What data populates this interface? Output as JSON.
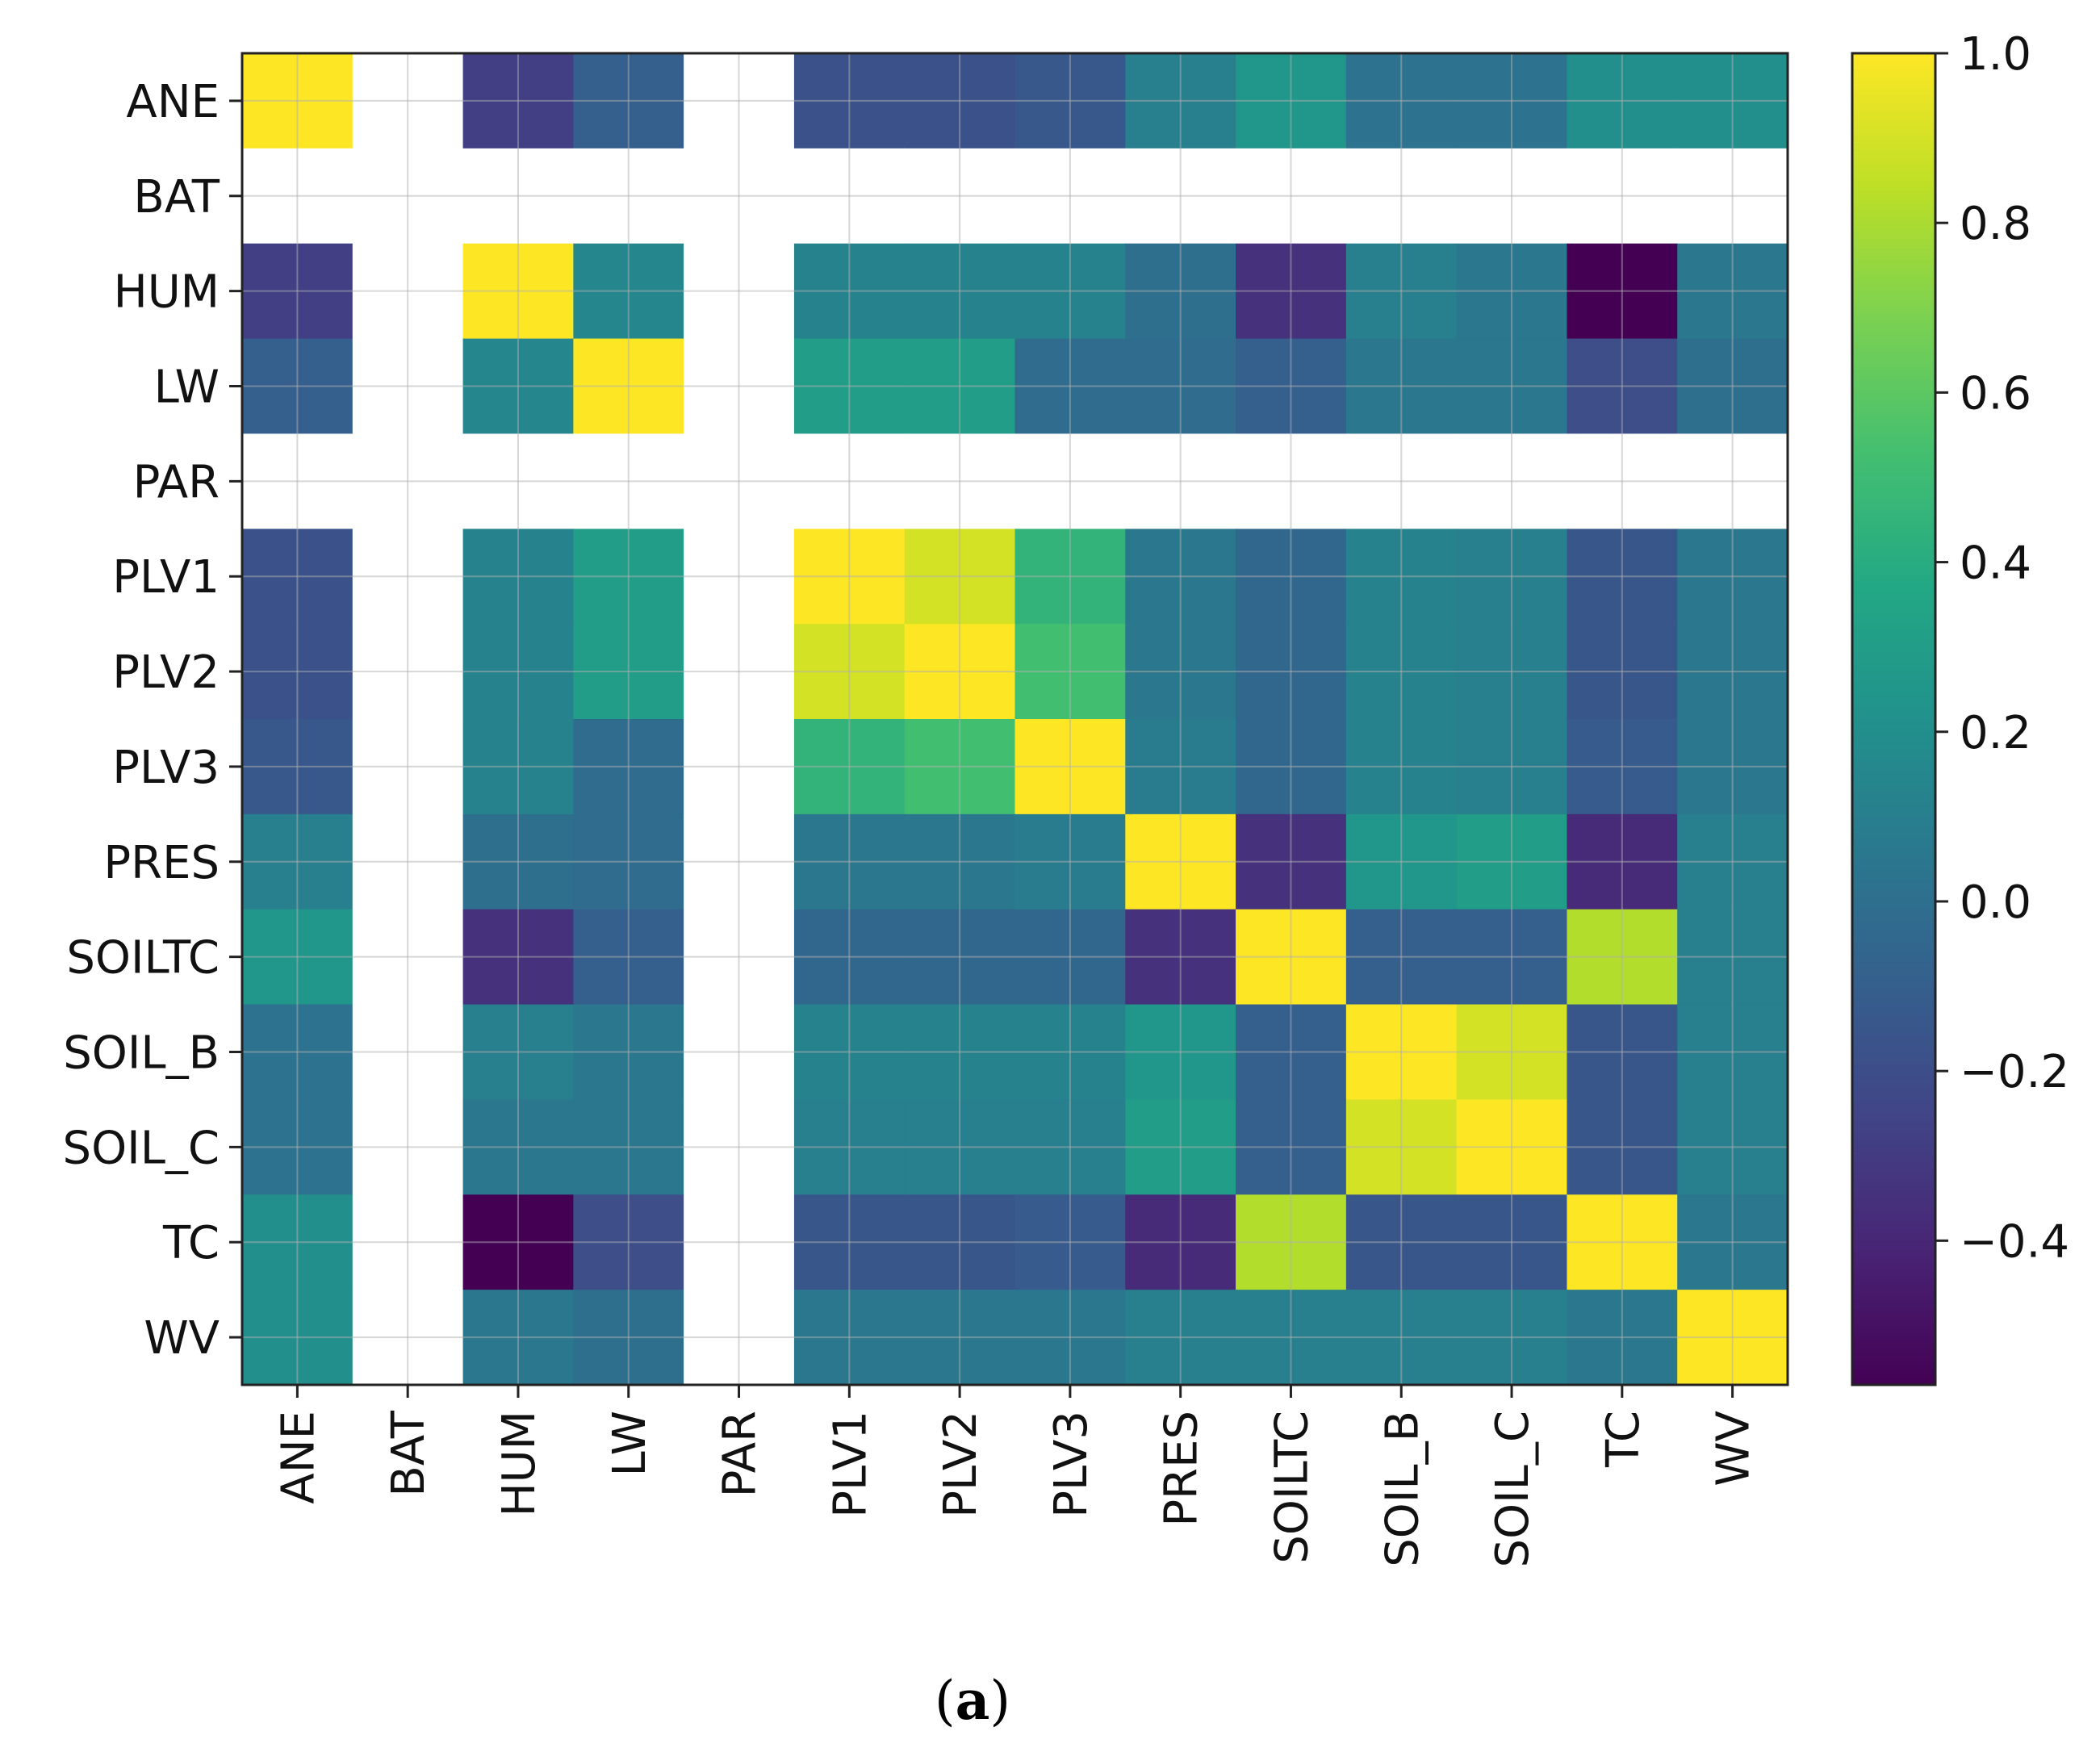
{
  "chart_data": {
    "type": "heatmap",
    "title": "",
    "xlabel": "",
    "ylabel": "",
    "colormap": "viridis",
    "grid": true,
    "x_labels": [
      "ANE",
      "BAT",
      "HUM",
      "LW",
      "PAR",
      "PLV1",
      "PLV2",
      "PLV3",
      "PRES",
      "SOILTC",
      "SOIL_B",
      "SOIL_C",
      "TC",
      "WV"
    ],
    "y_labels": [
      "ANE",
      "BAT",
      "HUM",
      "LW",
      "PAR",
      "PLV1",
      "PLV2",
      "PLV3",
      "PRES",
      "SOILTC",
      "SOIL_B",
      "SOIL_C",
      "TC",
      "WV"
    ],
    "values": [
      [
        1.0,
        null,
        -0.28,
        -0.1,
        null,
        -0.18,
        -0.18,
        -0.14,
        0.1,
        0.25,
        0.02,
        0.02,
        0.2,
        0.2
      ],
      [
        null,
        null,
        null,
        null,
        null,
        null,
        null,
        null,
        null,
        null,
        null,
        null,
        null,
        null
      ],
      [
        -0.28,
        null,
        1.0,
        0.15,
        null,
        0.12,
        0.12,
        0.13,
        0.0,
        -0.35,
        0.1,
        0.05,
        -0.57,
        0.05
      ],
      [
        -0.1,
        null,
        0.15,
        1.0,
        null,
        0.3,
        0.3,
        -0.02,
        -0.02,
        -0.1,
        0.05,
        0.05,
        -0.2,
        0.0
      ],
      [
        null,
        null,
        null,
        null,
        null,
        null,
        null,
        null,
        null,
        null,
        null,
        null,
        null,
        null
      ],
      [
        -0.18,
        null,
        0.12,
        0.3,
        null,
        1.0,
        0.9,
        0.45,
        0.05,
        -0.05,
        0.12,
        0.1,
        -0.15,
        0.05
      ],
      [
        -0.18,
        null,
        0.12,
        0.3,
        null,
        0.9,
        1.0,
        0.52,
        0.05,
        -0.05,
        0.12,
        0.1,
        -0.15,
        0.05
      ],
      [
        -0.14,
        null,
        0.13,
        -0.02,
        null,
        0.45,
        0.52,
        1.0,
        0.08,
        -0.05,
        0.12,
        0.1,
        -0.12,
        0.05
      ],
      [
        0.1,
        null,
        0.0,
        -0.02,
        null,
        0.05,
        0.05,
        0.08,
        1.0,
        -0.35,
        0.25,
        0.3,
        -0.38,
        0.1
      ],
      [
        0.25,
        null,
        -0.35,
        -0.1,
        null,
        -0.05,
        -0.05,
        -0.05,
        -0.35,
        1.0,
        -0.1,
        -0.1,
        0.82,
        0.1
      ],
      [
        0.02,
        null,
        0.1,
        0.05,
        null,
        0.12,
        0.12,
        0.12,
        0.25,
        -0.1,
        1.0,
        0.9,
        -0.15,
        0.1
      ],
      [
        0.02,
        null,
        0.05,
        0.05,
        null,
        0.1,
        0.1,
        0.1,
        0.3,
        -0.1,
        0.9,
        1.0,
        -0.15,
        0.1
      ],
      [
        0.2,
        null,
        -0.57,
        -0.2,
        null,
        -0.15,
        -0.15,
        -0.12,
        -0.38,
        0.82,
        -0.15,
        -0.15,
        1.0,
        0.05
      ],
      [
        0.2,
        null,
        0.05,
        0.0,
        null,
        0.05,
        0.05,
        0.05,
        0.1,
        0.1,
        0.1,
        0.1,
        0.05,
        1.0
      ]
    ],
    "colorbar": {
      "range": [
        -0.57,
        1.0
      ],
      "ticks": [
        1.0,
        0.8,
        0.6,
        0.4,
        0.2,
        0.0,
        -0.2,
        -0.4
      ],
      "tick_labels": [
        "1.0",
        "0.8",
        "0.6",
        "0.4",
        "0.2",
        "0.0",
        "−0.2",
        "−0.4"
      ]
    },
    "nan_color": "#ffffff"
  },
  "caption": {
    "open": "(",
    "letter": "a",
    "close": ")"
  }
}
